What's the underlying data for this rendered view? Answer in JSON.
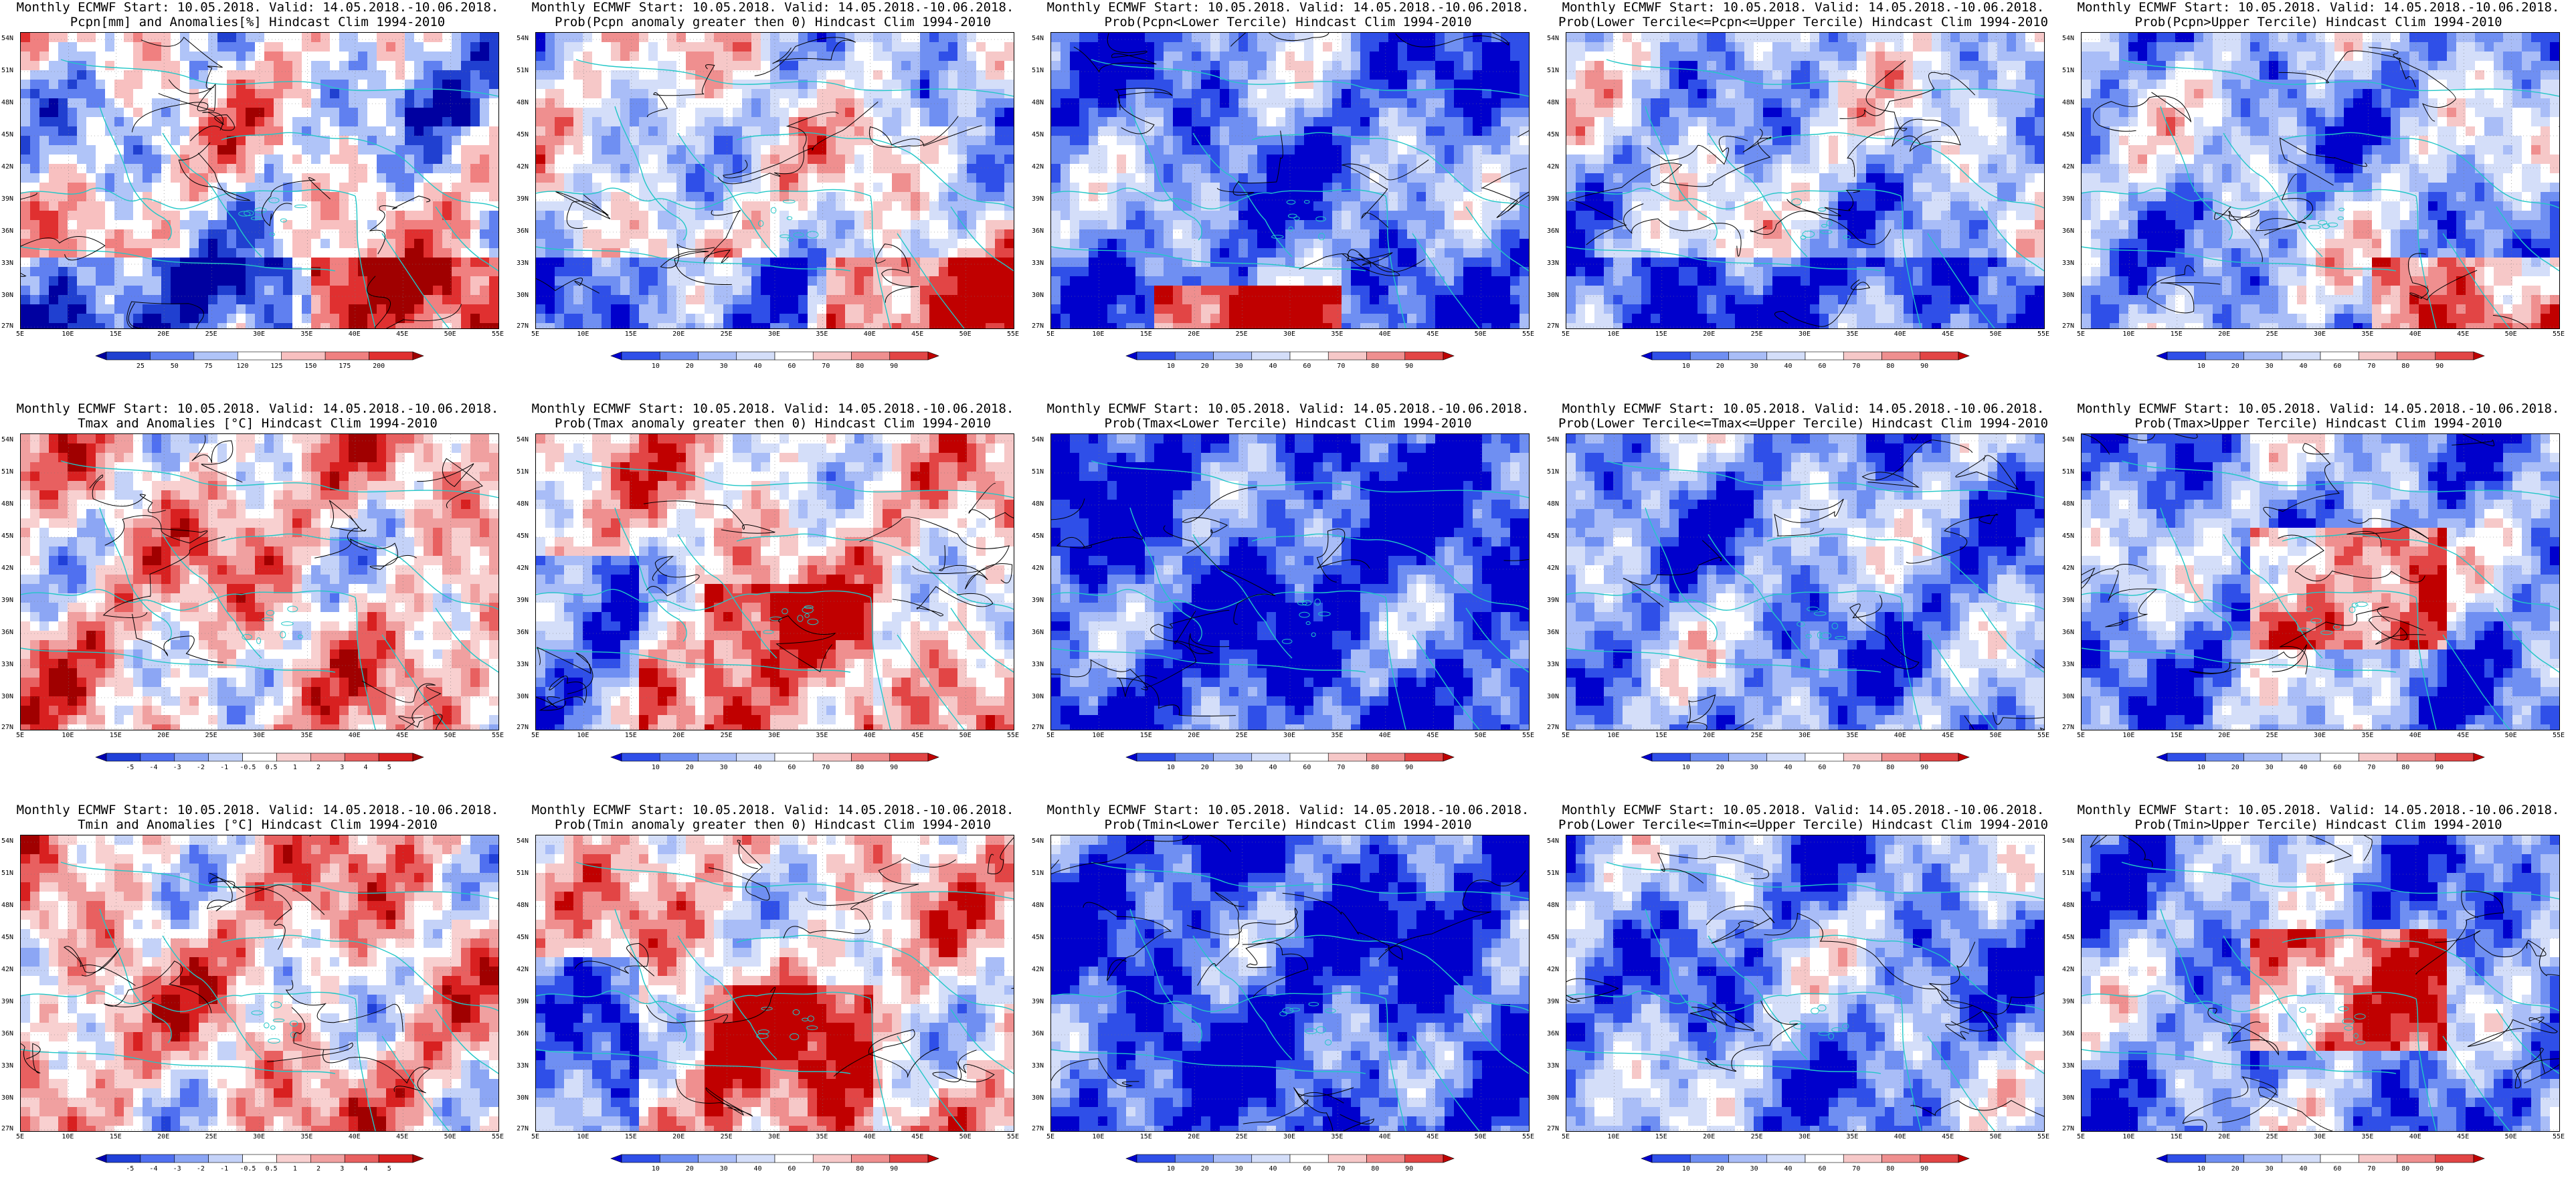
{
  "panels": [
    {
      "title1": "Monthly ECMWF Start: 10.05.2018. Valid: 14.05.2018.-10.06.2018.",
      "title2": "Pcpn[mm] and Anomalies[%] Hindcast Clim 1994-2010",
      "colorbar": [
        "25",
        "50",
        "75",
        "120",
        "125",
        "150",
        "175",
        "200"
      ],
      "palette": "pcpn-anom",
      "field": "pcpn"
    },
    {
      "title1": "Monthly ECMWF Start: 10.05.2018. Valid: 14.05.2018.-10.06.2018.",
      "title2": "Prob(Pcpn anomaly greater then 0) Hindcast Clim 1994-2010",
      "colorbar": [
        "10",
        "20",
        "30",
        "40",
        "60",
        "70",
        "80",
        "90"
      ],
      "palette": "prob",
      "field": "pcpn"
    },
    {
      "title1": "Monthly ECMWF Start: 10.05.2018. Valid: 14.05.2018.-10.06.2018.",
      "title2": "Prob(Pcpn<Lower Tercile) Hindcast Clim 1994-2010",
      "colorbar": [
        "10",
        "20",
        "30",
        "40",
        "60",
        "70",
        "80",
        "90"
      ],
      "palette": "prob",
      "field": "pcpn-low"
    },
    {
      "title1": "Monthly ECMWF Start: 10.05.2018. Valid: 14.05.2018.-10.06.2018.",
      "title2": "Prob(Lower Tercile<=Pcpn<=Upper Tercile) Hindcast Clim 1994-2010",
      "colorbar": [
        "10",
        "20",
        "30",
        "40",
        "60",
        "70",
        "80",
        "90"
      ],
      "palette": "prob",
      "field": "pcpn-mid"
    },
    {
      "title1": "Monthly ECMWF Start: 10.05.2018. Valid: 14.05.2018.-10.06.2018.",
      "title2": "Prob(Pcpn>Upper Tercile) Hindcast Clim 1994-2010",
      "colorbar": [
        "10",
        "20",
        "30",
        "40",
        "60",
        "70",
        "80",
        "90"
      ],
      "palette": "prob",
      "field": "pcpn-up"
    },
    {
      "title1": "Monthly ECMWF Start: 10.05.2018. Valid: 14.05.2018.-10.06.2018.",
      "title2": "Tmax and Anomalies [°C] Hindcast Clim 1994-2010",
      "colorbar": [
        "-5",
        "-4",
        "-3",
        "-2",
        "-1",
        "-0.5",
        "0.5",
        "1",
        "2",
        "3",
        "4",
        "5"
      ],
      "palette": "t-anom",
      "field": "tmax"
    },
    {
      "title1": "Monthly ECMWF Start: 10.05.2018. Valid: 14.05.2018.-10.06.2018.",
      "title2": "Prob(Tmax anomaly greater then 0) Hindcast Clim 1994-2010",
      "colorbar": [
        "10",
        "20",
        "30",
        "40",
        "60",
        "70",
        "80",
        "90"
      ],
      "palette": "prob",
      "field": "tmax-pos"
    },
    {
      "title1": "Monthly ECMWF Start: 10.05.2018. Valid: 14.05.2018.-10.06.2018.",
      "title2": "Prob(Tmax<Lower Tercile) Hindcast Clim 1994-2010",
      "colorbar": [
        "10",
        "20",
        "30",
        "40",
        "60",
        "70",
        "80",
        "90"
      ],
      "palette": "prob",
      "field": "tmax-low"
    },
    {
      "title1": "Monthly ECMWF Start: 10.05.2018. Valid: 14.05.2018.-10.06.2018.",
      "title2": "Prob(Lower Tercile<=Tmax<=Upper Tercile) Hindcast Clim 1994-2010",
      "colorbar": [
        "10",
        "20",
        "30",
        "40",
        "60",
        "70",
        "80",
        "90"
      ],
      "palette": "prob",
      "field": "tmax-mid"
    },
    {
      "title1": "Monthly ECMWF Start: 10.05.2018. Valid: 14.05.2018.-10.06.2018.",
      "title2": "Prob(Tmax>Upper Tercile) Hindcast Clim 1994-2010",
      "colorbar": [
        "10",
        "20",
        "30",
        "40",
        "60",
        "70",
        "80",
        "90"
      ],
      "palette": "prob",
      "field": "tmax-up"
    },
    {
      "title1": "Monthly ECMWF Start: 10.05.2018. Valid: 14.05.2018.-10.06.2018.",
      "title2": "Tmin and Anomalies [°C] Hindcast Clim 1994-2010",
      "colorbar": [
        "-5",
        "-4",
        "-3",
        "-2",
        "-1",
        "-0.5",
        "0.5",
        "1",
        "2",
        "3",
        "4",
        "5"
      ],
      "palette": "t-anom",
      "field": "tmin"
    },
    {
      "title1": "Monthly ECMWF Start: 10.05.2018. Valid: 14.05.2018.-10.06.2018.",
      "title2": "Prob(Tmin anomaly greater then 0) Hindcast Clim 1994-2010",
      "colorbar": [
        "10",
        "20",
        "30",
        "40",
        "60",
        "70",
        "80",
        "90"
      ],
      "palette": "prob",
      "field": "tmin-pos"
    },
    {
      "title1": "Monthly ECMWF Start: 10.05.2018. Valid: 14.05.2018.-10.06.2018.",
      "title2": "Prob(Tmin<Lower Tercile) Hindcast Clim 1994-2010",
      "colorbar": [
        "10",
        "20",
        "30",
        "40",
        "60",
        "70",
        "80",
        "90"
      ],
      "palette": "prob",
      "field": "tmin-low"
    },
    {
      "title1": "Monthly ECMWF Start: 10.05.2018. Valid: 14.05.2018.-10.06.2018.",
      "title2": "Prob(Lower Tercile<=Tmin<=Upper Tercile) Hindcast Clim 1994-2010",
      "colorbar": [
        "10",
        "20",
        "30",
        "40",
        "60",
        "70",
        "80",
        "90"
      ],
      "palette": "prob",
      "field": "tmin-mid"
    },
    {
      "title1": "Monthly ECMWF Start: 10.05.2018. Valid: 14.05.2018.-10.06.2018.",
      "title2": "Prob(Tmin>Upper Tercile) Hindcast Clim 1994-2010",
      "colorbar": [
        "10",
        "20",
        "30",
        "40",
        "60",
        "70",
        "80",
        "90"
      ],
      "palette": "prob",
      "field": "tmin-up"
    }
  ],
  "lat_labels": [
    "54N",
    "51N",
    "48N",
    "45N",
    "42N",
    "39N",
    "36N",
    "33N",
    "30N",
    "27N"
  ],
  "lon_labels": [
    "5E",
    "10E",
    "15E",
    "20E",
    "25E",
    "30E",
    "35E",
    "40E",
    "45E",
    "50E",
    "55E"
  ],
  "colors": {
    "coast": "#22c7c7",
    "contour": "#000000",
    "prob_palette": [
      "#0000cc",
      "#2f4fe8",
      "#6f8ff2",
      "#a9bdf7",
      "#d4def9",
      "#ffffff",
      "#f6c8c8",
      "#ef8f8f",
      "#e24545",
      "#c00000"
    ],
    "pcpn_palette": [
      "#0000a0",
      "#2040d0",
      "#6080f0",
      "#b0c4f8",
      "#ffffff",
      "#f8c0c0",
      "#f08080",
      "#e03030",
      "#a00000"
    ],
    "t_palette": [
      "#0000b0",
      "#2040d8",
      "#5070f0",
      "#8ca6f4",
      "#c4d2f8",
      "#ffffff",
      "#f8d0d0",
      "#f0a0a0",
      "#e86060",
      "#d82020",
      "#a00000"
    ]
  }
}
